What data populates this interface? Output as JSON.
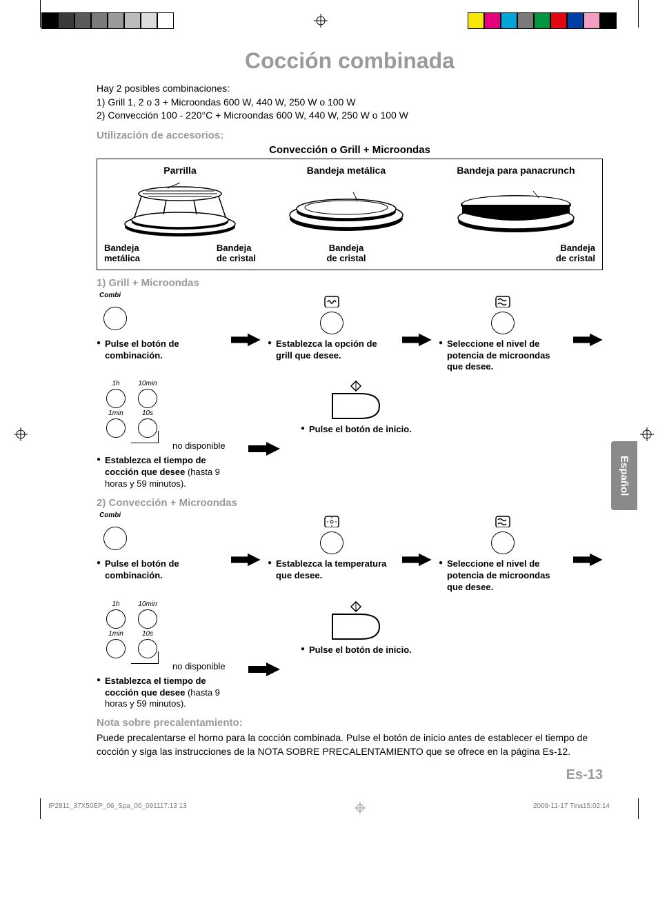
{
  "print_bar": {
    "left_colors": [
      "#000000",
      "#3a3a3a",
      "#5a5a5a",
      "#7a7a7a",
      "#9a9a9a",
      "#bcbcbc",
      "#dcdcdc",
      "#ffffff"
    ],
    "right_colors": [
      "#f6e600",
      "#e6007e",
      "#00a6d6",
      "#7a7a7a",
      "#009640",
      "#e30613",
      "#003da5",
      "#f29ec4",
      "#000000"
    ]
  },
  "title": "Cocción combinada",
  "intro": {
    "line0": "Hay 2 posibles combinaciones:",
    "line1": "1)  Grill 1, 2 o 3 + Microondas 600 W, 440 W, 250 W o 100 W",
    "line2": "2)  Convección 100 - 220°C + Microondas 600 W, 440 W, 250 W o 100 W"
  },
  "sections": {
    "accessories_title": "Utilización de accesorios:",
    "accessories_sub": "Convección o Grill + Microondas",
    "col1_top": "Parrilla",
    "col1_bl": "Bandeja\nmetálica",
    "col1_br": "Bandeja\nde cristal",
    "col2_top": "Bandeja metálica",
    "col2_b": "Bandeja\nde cristal",
    "col3_top": "Bandeja para panacrunch",
    "col3_b": "Bandeja\nde cristal"
  },
  "proc1": {
    "title": "1) Grill + Microondas",
    "combi": "Combi",
    "s1": "Pulse el botón de combinación.",
    "s2": "Establezca la opción de grill que desee.",
    "s3": "Seleccione el nivel de potencia de microon­das que desee.",
    "s4a": "Establezca el tiempo de cocción que desee",
    "s4b": " (hasta 9 horas y 59 minutos).",
    "s5": "Pulse el botón de inicio.",
    "time": {
      "h": "1h",
      "tenm": "10min",
      "onem": "1min",
      "tens": "10s"
    },
    "nodisp": "no disponible"
  },
  "proc2": {
    "title": "2) Convección + Microondas",
    "combi": "Combi",
    "s1": "Pulse el botón de combinación.",
    "s2": "Establezca la temper­atura que desee.",
    "s3": "Seleccione el nivel de potencia de microondas que desee.",
    "s4a": "Establezca el tiempo de cocción que desee",
    "s4b": " (hasta 9 horas y 59 minutos).",
    "s5": "Pulse el botón de inicio.",
    "nodisp": "no disponible"
  },
  "preheat": {
    "title": "Nota sobre precalentamiento:",
    "body": "Puede precalentarse el horno para la cocción combinada. Pulse el botón de inicio antes de establecer el tiempo de cocción y siga las instrucciones de la NOTA SOBRE PRECALEN­TAMIENTO que se ofrece en la página Es-12."
  },
  "lang_tab": "Español",
  "page_num": "Es-13",
  "footer": {
    "left": "IP2811_37X50EP_06_Spa_00_091117.13   13",
    "right": "2009-11-17   Tina15:02:14"
  }
}
